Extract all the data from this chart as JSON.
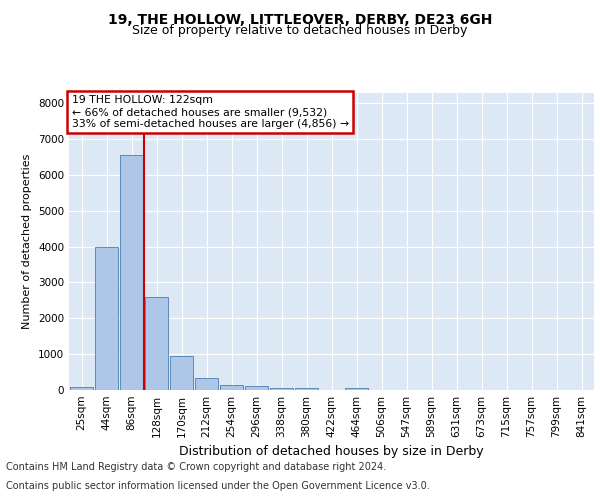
{
  "title1": "19, THE HOLLOW, LITTLEOVER, DERBY, DE23 6GH",
  "title2": "Size of property relative to detached houses in Derby",
  "xlabel": "Distribution of detached houses by size in Derby",
  "ylabel": "Number of detached properties",
  "bar_labels": [
    "25sqm",
    "44sqm",
    "86sqm",
    "128sqm",
    "170sqm",
    "212sqm",
    "254sqm",
    "296sqm",
    "338sqm",
    "380sqm",
    "422sqm",
    "464sqm",
    "506sqm",
    "547sqm",
    "589sqm",
    "631sqm",
    "673sqm",
    "715sqm",
    "757sqm",
    "799sqm",
    "841sqm"
  ],
  "bar_values": [
    80,
    4000,
    6550,
    2600,
    960,
    330,
    130,
    105,
    65,
    55,
    0,
    65,
    0,
    0,
    0,
    0,
    0,
    0,
    0,
    0,
    0
  ],
  "bar_color": "#aec6e8",
  "bar_edge_color": "#4c7fb0",
  "vline_color": "#cc0000",
  "annotation_text": "19 THE HOLLOW: 122sqm\n← 66% of detached houses are smaller (9,532)\n33% of semi-detached houses are larger (4,856) →",
  "annotation_box_color": "#ffffff",
  "annotation_box_edge_color": "#cc0000",
  "ylim": [
    0,
    8300
  ],
  "yticks": [
    0,
    1000,
    2000,
    3000,
    4000,
    5000,
    6000,
    7000,
    8000
  ],
  "plot_bg_color": "#dde8f5",
  "footer1": "Contains HM Land Registry data © Crown copyright and database right 2024.",
  "footer2": "Contains public sector information licensed under the Open Government Licence v3.0.",
  "title1_fontsize": 10,
  "title2_fontsize": 9,
  "xlabel_fontsize": 9,
  "ylabel_fontsize": 8,
  "tick_fontsize": 7.5,
  "footer_fontsize": 7
}
